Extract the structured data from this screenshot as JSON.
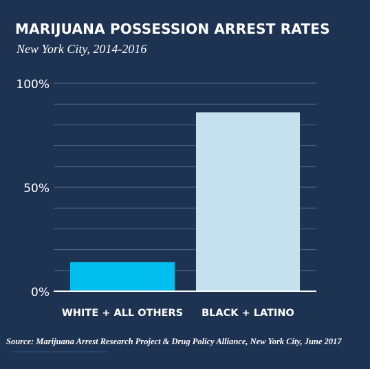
{
  "colors": {
    "background": "#1e3252",
    "gridline": "#56698a",
    "baseline": "#ffffff",
    "bar_white_others": "#00bfee",
    "bar_black_latino": "#c3e2ee"
  },
  "chart_data": {
    "type": "bar",
    "title": "MARIJUANA POSSESSION ARREST RATES",
    "subtitle": "New York City, 2014-2016",
    "categories": [
      "WHITE + ALL OTHERS",
      "BLACK + LATINO"
    ],
    "values": [
      14,
      86
    ],
    "ylim": [
      0,
      100
    ],
    "yticks": [
      0,
      50,
      100
    ],
    "ytick_labels": [
      "0%",
      "50%",
      "100%"
    ],
    "grid_step": 10,
    "grid": true,
    "source": "Source: Marijuana Arrest Research Project & Drug Policy Alliance, New York City, June 2017"
  }
}
